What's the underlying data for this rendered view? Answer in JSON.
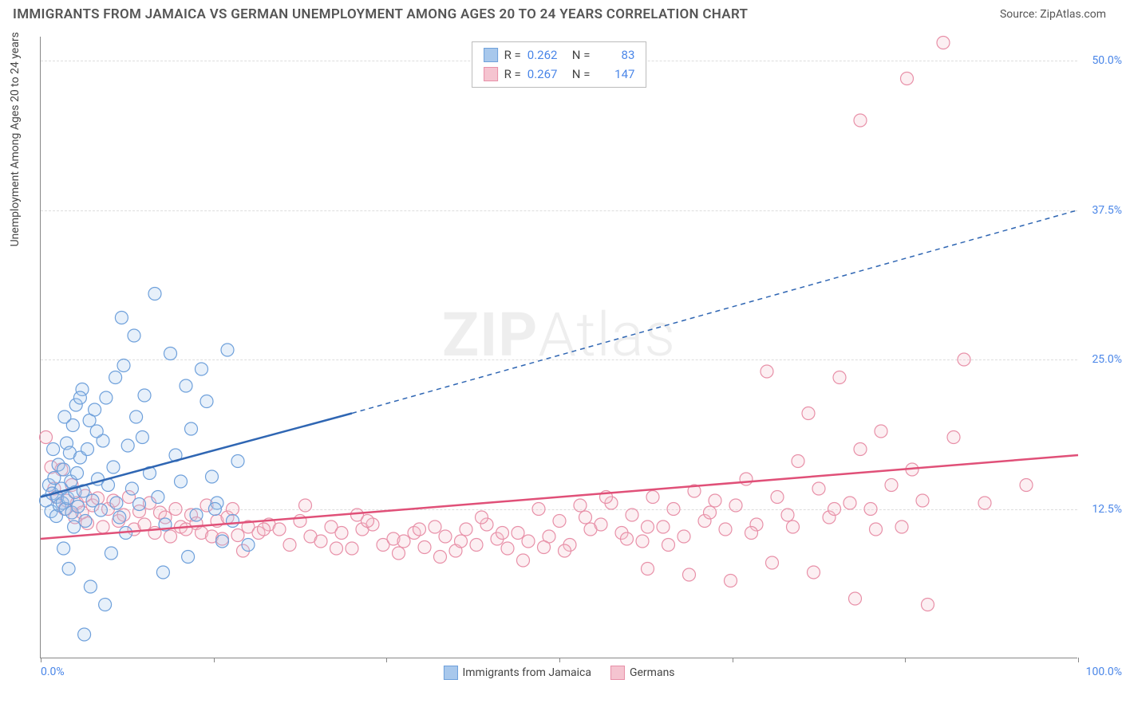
{
  "title": "IMMIGRANTS FROM JAMAICA VS GERMAN UNEMPLOYMENT AMONG AGES 20 TO 24 YEARS CORRELATION CHART",
  "source": "Source: ZipAtlas.com",
  "watermark_bold": "ZIP",
  "watermark_light": "Atlas",
  "chart": {
    "type": "scatter",
    "xlim": [
      0,
      100
    ],
    "ylim": [
      0,
      52
    ],
    "x_tick_marks": [
      0,
      16.67,
      33.33,
      50,
      66.67,
      83.33,
      100
    ],
    "x_tick_labels": {
      "0": "0.0%",
      "100": "100.0%"
    },
    "y_gridlines": [
      12.5,
      25.0,
      37.5,
      50.0
    ],
    "y_tick_labels": [
      "12.5%",
      "25.0%",
      "37.5%",
      "50.0%"
    ],
    "ylabel": "Unemployment Among Ages 20 to 24 years",
    "background_color": "#ffffff",
    "grid_color": "#dddddd",
    "axis_color": "#888888",
    "tick_label_color": "#4a86e8",
    "marker_radius": 8,
    "marker_stroke_width": 1.2,
    "marker_fill_opacity": 0.28
  },
  "series": [
    {
      "name": "Immigrants from Jamaica",
      "color_fill": "#a8c8ec",
      "color_stroke": "#6ea0db",
      "line_color": "#2f66b3",
      "stats": {
        "R": "0.262",
        "N": "83"
      },
      "trend": {
        "x1": 0,
        "y1": 13.5,
        "x2_solid": 30,
        "y2_solid": 20.5,
        "x2_dash": 100,
        "y2_dash": 37.5
      },
      "points": [
        [
          0.5,
          13.2
        ],
        [
          0.8,
          14.5
        ],
        [
          1.0,
          12.3
        ],
        [
          1.1,
          13.8
        ],
        [
          1.3,
          15.1
        ],
        [
          1.5,
          11.9
        ],
        [
          1.6,
          13.5
        ],
        [
          1.7,
          16.2
        ],
        [
          1.8,
          12.8
        ],
        [
          2.0,
          14.2
        ],
        [
          2.1,
          13.0
        ],
        [
          2.2,
          15.8
        ],
        [
          2.4,
          12.5
        ],
        [
          2.5,
          18.0
        ],
        [
          2.6,
          13.4
        ],
        [
          2.8,
          17.2
        ],
        [
          2.9,
          14.8
        ],
        [
          3.0,
          12.2
        ],
        [
          3.1,
          19.5
        ],
        [
          3.3,
          13.9
        ],
        [
          3.4,
          21.2
        ],
        [
          3.5,
          15.5
        ],
        [
          3.6,
          12.7
        ],
        [
          3.8,
          16.8
        ],
        [
          4.0,
          22.5
        ],
        [
          4.1,
          14.0
        ],
        [
          4.3,
          11.5
        ],
        [
          4.5,
          17.5
        ],
        [
          4.7,
          19.9
        ],
        [
          5.0,
          13.2
        ],
        [
          5.2,
          20.8
        ],
        [
          5.5,
          15.0
        ],
        [
          5.8,
          12.4
        ],
        [
          6.0,
          18.2
        ],
        [
          6.3,
          21.8
        ],
        [
          6.5,
          14.5
        ],
        [
          7.0,
          16.0
        ],
        [
          7.3,
          13.0
        ],
        [
          7.6,
          11.8
        ],
        [
          8.0,
          24.5
        ],
        [
          8.4,
          17.8
        ],
        [
          8.8,
          14.2
        ],
        [
          9.2,
          20.2
        ],
        [
          9.5,
          12.9
        ],
        [
          10.0,
          22.0
        ],
        [
          10.5,
          15.5
        ],
        [
          11.0,
          30.5
        ],
        [
          11.3,
          13.5
        ],
        [
          12.0,
          11.2
        ],
        [
          12.5,
          25.5
        ],
        [
          13.0,
          17.0
        ],
        [
          13.5,
          14.8
        ],
        [
          14.0,
          22.8
        ],
        [
          14.5,
          19.2
        ],
        [
          15.0,
          12.0
        ],
        [
          15.5,
          24.2
        ],
        [
          16.0,
          21.5
        ],
        [
          16.5,
          15.2
        ],
        [
          17.0,
          13.0
        ],
        [
          18.0,
          25.8
        ],
        [
          18.5,
          11.5
        ],
        [
          19.0,
          16.5
        ],
        [
          20.0,
          9.5
        ],
        [
          7.8,
          28.5
        ],
        [
          9.0,
          27.0
        ],
        [
          4.8,
          6.0
        ],
        [
          2.7,
          7.5
        ],
        [
          6.8,
          8.8
        ],
        [
          11.8,
          7.2
        ],
        [
          14.2,
          8.5
        ],
        [
          17.5,
          9.8
        ],
        [
          3.2,
          11.0
        ],
        [
          8.2,
          10.5
        ],
        [
          2.2,
          9.2
        ],
        [
          4.2,
          2.0
        ],
        [
          6.2,
          4.5
        ],
        [
          16.8,
          12.5
        ],
        [
          3.8,
          21.8
        ],
        [
          5.4,
          19.0
        ],
        [
          7.2,
          23.5
        ],
        [
          2.3,
          20.2
        ],
        [
          9.8,
          18.5
        ],
        [
          1.2,
          17.5
        ]
      ]
    },
    {
      "name": "Germans",
      "color_fill": "#f5c4d0",
      "color_stroke": "#e890a8",
      "line_color": "#e05078",
      "stats": {
        "R": "0.267",
        "N": "147"
      },
      "trend": {
        "x1": 0,
        "y1": 10.0,
        "x2_solid": 100,
        "y2_solid": 17.0,
        "x2_dash": 100,
        "y2_dash": 17.0
      },
      "points": [
        [
          0.5,
          18.5
        ],
        [
          1.0,
          16.0
        ],
        [
          1.3,
          14.2
        ],
        [
          1.5,
          13.5
        ],
        [
          2.0,
          15.8
        ],
        [
          2.3,
          12.5
        ],
        [
          2.5,
          13.2
        ],
        [
          3.0,
          14.5
        ],
        [
          3.3,
          11.8
        ],
        [
          3.5,
          13.0
        ],
        [
          4.0,
          12.2
        ],
        [
          4.3,
          13.6
        ],
        [
          4.5,
          11.3
        ],
        [
          5.0,
          12.8
        ],
        [
          5.5,
          13.4
        ],
        [
          6.0,
          11.0
        ],
        [
          6.5,
          12.5
        ],
        [
          7.0,
          13.2
        ],
        [
          7.5,
          11.5
        ],
        [
          8.0,
          12.0
        ],
        [
          8.5,
          13.5
        ],
        [
          9.0,
          10.8
        ],
        [
          9.5,
          12.3
        ],
        [
          10.0,
          11.2
        ],
        [
          10.5,
          13.0
        ],
        [
          11.0,
          10.5
        ],
        [
          11.5,
          12.2
        ],
        [
          12.0,
          11.8
        ],
        [
          12.5,
          10.2
        ],
        [
          13.0,
          12.5
        ],
        [
          13.5,
          11.0
        ],
        [
          14.0,
          10.8
        ],
        [
          14.5,
          12.0
        ],
        [
          15.0,
          11.3
        ],
        [
          15.5,
          10.5
        ],
        [
          16.0,
          12.8
        ],
        [
          16.5,
          10.2
        ],
        [
          17.0,
          11.5
        ],
        [
          17.5,
          10.0
        ],
        [
          18.0,
          11.8
        ],
        [
          18.5,
          12.5
        ],
        [
          19.0,
          10.3
        ],
        [
          20.0,
          11.0
        ],
        [
          21.0,
          10.5
        ],
        [
          22.0,
          11.2
        ],
        [
          23.0,
          10.8
        ],
        [
          24.0,
          9.5
        ],
        [
          25.0,
          11.5
        ],
        [
          26.0,
          10.2
        ],
        [
          27.0,
          9.8
        ],
        [
          28.0,
          11.0
        ],
        [
          29.0,
          10.5
        ],
        [
          30.0,
          9.2
        ],
        [
          31.0,
          10.8
        ],
        [
          32.0,
          11.2
        ],
        [
          33.0,
          9.5
        ],
        [
          34.0,
          10.0
        ],
        [
          35.0,
          9.8
        ],
        [
          36.0,
          10.5
        ],
        [
          37.0,
          9.3
        ],
        [
          38.0,
          11.0
        ],
        [
          39.0,
          10.2
        ],
        [
          40.0,
          9.0
        ],
        [
          41.0,
          10.8
        ],
        [
          42.0,
          9.5
        ],
        [
          43.0,
          11.2
        ],
        [
          44.0,
          10.0
        ],
        [
          45.0,
          9.2
        ],
        [
          46.0,
          10.5
        ],
        [
          47.0,
          9.8
        ],
        [
          48.0,
          12.5
        ],
        [
          49.0,
          10.2
        ],
        [
          50.0,
          11.5
        ],
        [
          51.0,
          9.5
        ],
        [
          52.0,
          12.8
        ],
        [
          53.0,
          10.8
        ],
        [
          54.0,
          11.2
        ],
        [
          55.0,
          13.0
        ],
        [
          56.0,
          10.5
        ],
        [
          57.0,
          12.0
        ],
        [
          58.0,
          9.8
        ],
        [
          59.0,
          13.5
        ],
        [
          60.0,
          11.0
        ],
        [
          61.0,
          12.5
        ],
        [
          62.0,
          10.2
        ],
        [
          63.0,
          14.0
        ],
        [
          64.0,
          11.5
        ],
        [
          65.0,
          13.2
        ],
        [
          66.0,
          10.8
        ],
        [
          67.0,
          12.8
        ],
        [
          68.0,
          15.0
        ],
        [
          69.0,
          11.2
        ],
        [
          70.0,
          24.0
        ],
        [
          71.0,
          13.5
        ],
        [
          72.0,
          12.0
        ],
        [
          73.0,
          16.5
        ],
        [
          74.0,
          20.5
        ],
        [
          75.0,
          14.2
        ],
        [
          76.0,
          11.8
        ],
        [
          77.0,
          23.5
        ],
        [
          78.0,
          13.0
        ],
        [
          79.0,
          17.5
        ],
        [
          80.0,
          12.5
        ],
        [
          81.0,
          19.0
        ],
        [
          82.0,
          14.5
        ],
        [
          83.0,
          11.0
        ],
        [
          84.0,
          15.8
        ],
        [
          85.0,
          13.2
        ],
        [
          58.5,
          7.5
        ],
        [
          62.5,
          7.0
        ],
        [
          66.5,
          6.5
        ],
        [
          70.5,
          8.0
        ],
        [
          74.5,
          7.2
        ],
        [
          79.0,
          45.0
        ],
        [
          83.5,
          48.5
        ],
        [
          87.0,
          51.5
        ],
        [
          89.0,
          25.0
        ],
        [
          91.0,
          13.0
        ],
        [
          95.0,
          14.5
        ],
        [
          78.5,
          5.0
        ],
        [
          85.5,
          4.5
        ],
        [
          88.0,
          18.5
        ],
        [
          30.5,
          12.0
        ],
        [
          34.5,
          8.8
        ],
        [
          38.5,
          8.5
        ],
        [
          42.5,
          11.8
        ],
        [
          46.5,
          8.2
        ],
        [
          50.5,
          9.0
        ],
        [
          54.5,
          13.5
        ],
        [
          58.5,
          11.0
        ],
        [
          25.5,
          12.8
        ],
        [
          28.5,
          9.2
        ],
        [
          31.5,
          11.5
        ],
        [
          36.5,
          10.8
        ],
        [
          40.5,
          9.8
        ],
        [
          44.5,
          10.5
        ],
        [
          48.5,
          9.3
        ],
        [
          52.5,
          11.8
        ],
        [
          56.5,
          10.0
        ],
        [
          60.5,
          9.5
        ],
        [
          64.5,
          12.2
        ],
        [
          68.5,
          10.5
        ],
        [
          72.5,
          11.0
        ],
        [
          76.5,
          12.5
        ],
        [
          80.5,
          10.8
        ],
        [
          19.5,
          9.0
        ],
        [
          21.5,
          10.8
        ]
      ]
    }
  ],
  "legend": {
    "label_R": "R =",
    "label_N": "N ="
  }
}
